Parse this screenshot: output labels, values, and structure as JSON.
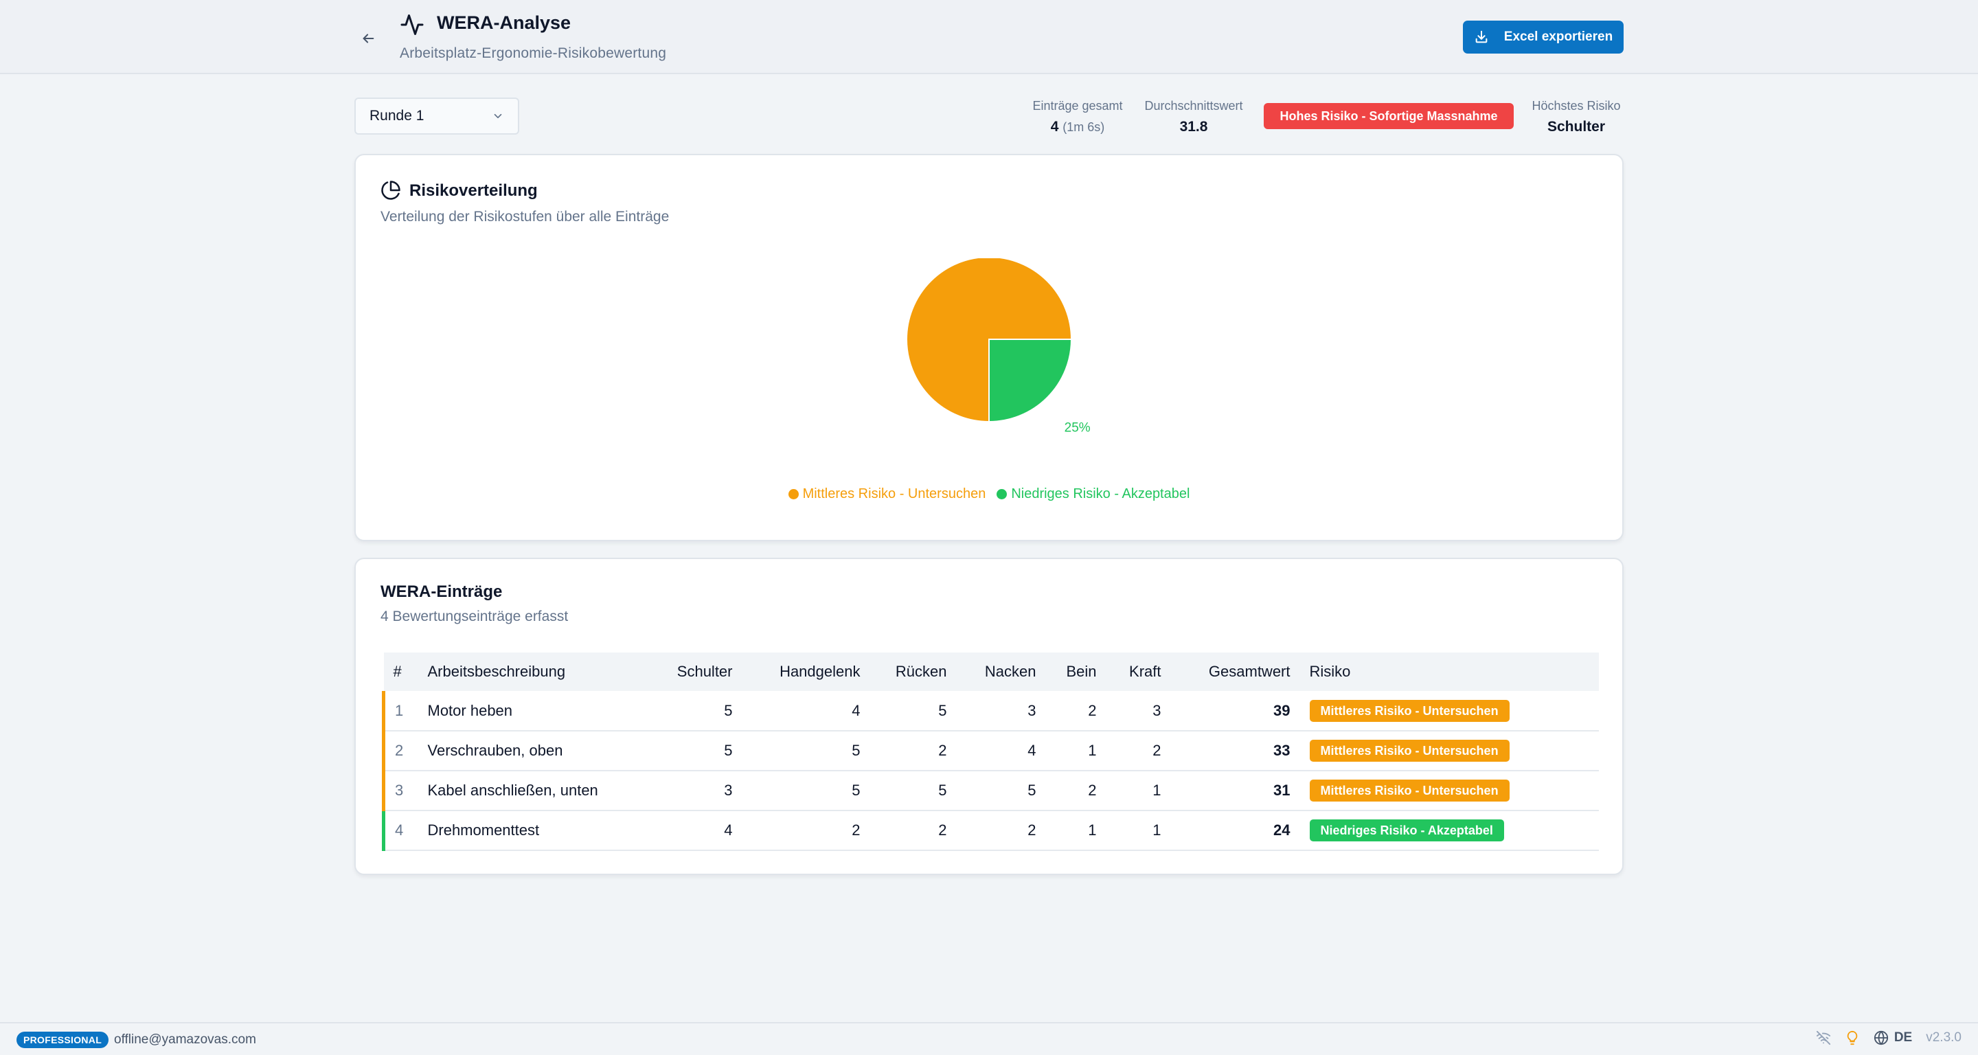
{
  "header": {
    "title": "WERA-Analyse",
    "subtitle": "Arbeitsplatz-Ergonomie-Risikobewertung",
    "export_label": "Excel exportieren"
  },
  "toolbar": {
    "round_select_value": "Runde 1",
    "stats": {
      "entries_label": "Einträge gesamt",
      "entries_value": "4",
      "entries_duration": "(1m 6s)",
      "average_label": "Durchschnittswert",
      "average_value": "31.8",
      "overall_risk": "Hohes Risiko - Sofortige Massnahme",
      "highest_label": "Höchstes Risiko",
      "highest_value": "Schulter"
    }
  },
  "distribution": {
    "title": "Risikoverteilung",
    "description": "Verteilung der Risikostufen über alle Einträge"
  },
  "chart_data": {
    "type": "pie",
    "slices": [
      {
        "label": "Mittleres Risiko - Untersuchen",
        "value": 75,
        "display": "75%",
        "color": "#f59e0b"
      },
      {
        "label": "Niedriges Risiko - Akzeptabel",
        "value": 25,
        "display": "25%",
        "color": "#22c55e"
      }
    ],
    "legend_position": "bottom"
  },
  "entries": {
    "title": "WERA-Einträge",
    "description": "4 Bewertungseinträge erfasst",
    "columns": [
      "#",
      "Arbeitsbeschreibung",
      "Schulter",
      "Handgelenk",
      "Rücken",
      "Nacken",
      "Bein",
      "Kraft",
      "Gesamtwert",
      "Risiko"
    ],
    "rows": [
      {
        "idx": "1",
        "desc": "Motor heben",
        "schulter": "5",
        "handgelenk": "4",
        "ruecken": "5",
        "nacken": "3",
        "bein": "2",
        "kraft": "3",
        "total": "39",
        "risk": "Mittleres Risiko - Untersuchen"
      },
      {
        "idx": "2",
        "desc": "Verschrauben, oben",
        "schulter": "5",
        "handgelenk": "5",
        "ruecken": "2",
        "nacken": "4",
        "bein": "1",
        "kraft": "2",
        "total": "33",
        "risk": "Mittleres Risiko - Untersuchen"
      },
      {
        "idx": "3",
        "desc": "Kabel anschließen, unten",
        "schulter": "3",
        "handgelenk": "5",
        "ruecken": "5",
        "nacken": "5",
        "bein": "2",
        "kraft": "1",
        "total": "31",
        "risk": "Mittleres Risiko - Untersuchen"
      },
      {
        "idx": "4",
        "desc": "Drehmomenttest",
        "schulter": "4",
        "handgelenk": "2",
        "ruecken": "2",
        "nacken": "2",
        "bein": "1",
        "kraft": "1",
        "total": "24",
        "risk": "Niedriges Risiko - Akzeptabel"
      }
    ]
  },
  "colors": {
    "accent": "#0b74c4",
    "high_risk": "#ef4444",
    "medium_risk": "#f59e0b",
    "low_risk": "#22c55e"
  },
  "footer": {
    "plan": "PROFESSIONAL",
    "email": "offline@yamazovas.com",
    "language": "DE",
    "version": "v2.3.0"
  }
}
